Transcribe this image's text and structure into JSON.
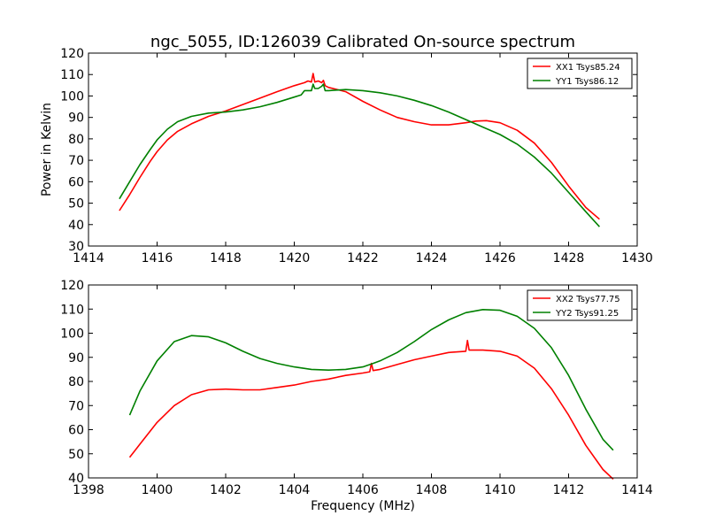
{
  "figure": {
    "title": "ngc_5055, ID:126039 Calibrated On-source spectrum"
  },
  "chart_data": [
    {
      "type": "line",
      "title": "ngc_5055, ID:126039 Calibrated On-source spectrum",
      "xlabel": "",
      "ylabel": "Power in Kelvin",
      "xlim": [
        1414,
        1430
      ],
      "ylim": [
        30,
        120
      ],
      "xticks": [
        1414,
        1416,
        1418,
        1420,
        1422,
        1424,
        1426,
        1428,
        1430
      ],
      "yticks": [
        30,
        40,
        50,
        60,
        70,
        80,
        90,
        100,
        110,
        120
      ],
      "legend_position": "top-right",
      "grid": false,
      "series": [
        {
          "name": "XX1 Tsys85.24",
          "color": "#ff0000",
          "x": [
            1414.9,
            1415.2,
            1415.5,
            1415.8,
            1416.0,
            1416.3,
            1416.6,
            1417.0,
            1417.5,
            1418.0,
            1418.5,
            1419.0,
            1419.5,
            1420.0,
            1420.3,
            1420.4,
            1420.5,
            1420.55,
            1420.6,
            1420.7,
            1420.8,
            1420.85,
            1420.9,
            1421.0,
            1421.5,
            1422.0,
            1422.5,
            1423.0,
            1423.5,
            1424.0,
            1424.5,
            1425.0,
            1425.3,
            1425.6,
            1426.0,
            1426.5,
            1427.0,
            1427.5,
            1428.0,
            1428.5,
            1428.9
          ],
          "y": [
            46.5,
            54,
            62,
            69.5,
            74,
            79.5,
            83.5,
            87,
            90.5,
            93,
            96,
            99,
            102,
            104.8,
            106.2,
            107,
            106.5,
            110.5,
            106.5,
            107,
            106.2,
            107.3,
            104.8,
            104,
            102,
            97.5,
            93.5,
            90,
            88,
            86.5,
            86.5,
            87.5,
            88.3,
            88.5,
            87.5,
            84,
            78,
            69,
            58,
            48,
            42.5
          ]
        },
        {
          "name": "YY1 Tsys86.12",
          "color": "#008000",
          "x": [
            1414.9,
            1415.2,
            1415.5,
            1415.8,
            1416.0,
            1416.3,
            1416.6,
            1417.0,
            1417.5,
            1418.0,
            1418.5,
            1419.0,
            1419.5,
            1420.0,
            1420.2,
            1420.3,
            1420.4,
            1420.5,
            1420.55,
            1420.6,
            1420.7,
            1420.8,
            1420.85,
            1420.9,
            1421.0,
            1421.5,
            1422.0,
            1422.5,
            1423.0,
            1423.5,
            1424.0,
            1424.5,
            1425.0,
            1425.5,
            1426.0,
            1426.5,
            1427.0,
            1427.5,
            1428.0,
            1428.5,
            1428.9
          ],
          "y": [
            52,
            60,
            68,
            75,
            79.5,
            84.5,
            88,
            90.5,
            92,
            92.5,
            93.5,
            95,
            97,
            99.5,
            100.5,
            102.5,
            102.5,
            102.5,
            105.5,
            103.5,
            103.5,
            104.5,
            105.5,
            102.5,
            102.5,
            103,
            102.5,
            101.5,
            100,
            98,
            95.5,
            92.5,
            89,
            85.5,
            82,
            77.5,
            71.5,
            64,
            55,
            46,
            39
          ]
        }
      ]
    },
    {
      "type": "line",
      "title": "",
      "xlabel": "Frequency (MHz)",
      "ylabel": "",
      "xlim": [
        1398,
        1414
      ],
      "ylim": [
        40,
        120
      ],
      "xticks": [
        1398,
        1400,
        1402,
        1404,
        1406,
        1408,
        1410,
        1412,
        1414
      ],
      "yticks": [
        40,
        50,
        60,
        70,
        80,
        90,
        100,
        110,
        120
      ],
      "legend_position": "top-right",
      "grid": false,
      "series": [
        {
          "name": "XX2 Tsys77.75",
          "color": "#ff0000",
          "x": [
            1399.2,
            1399.5,
            1400.0,
            1400.5,
            1401.0,
            1401.5,
            1402.0,
            1402.5,
            1403.0,
            1403.5,
            1404.0,
            1404.5,
            1405.0,
            1405.5,
            1406.0,
            1406.2,
            1406.25,
            1406.3,
            1406.5,
            1407.0,
            1407.5,
            1408.0,
            1408.5,
            1409.0,
            1409.05,
            1409.1,
            1409.5,
            1410.0,
            1410.5,
            1411.0,
            1411.5,
            1412.0,
            1412.5,
            1413.0,
            1413.3
          ],
          "y": [
            48.5,
            54,
            63,
            70,
            74.5,
            76.5,
            76.8,
            76.5,
            76.5,
            77.5,
            78.5,
            80,
            81,
            82.5,
            83.5,
            84,
            87.5,
            84.5,
            85,
            87,
            89,
            90.5,
            92,
            92.5,
            97,
            93,
            93,
            92.5,
            90.5,
            85.5,
            77,
            66,
            53.5,
            43.5,
            39.5
          ]
        },
        {
          "name": "YY2 Tsys91.25",
          "color": "#008000",
          "x": [
            1399.2,
            1399.5,
            1400.0,
            1400.5,
            1401.0,
            1401.5,
            1402.0,
            1402.5,
            1403.0,
            1403.5,
            1404.0,
            1404.5,
            1405.0,
            1405.5,
            1406.0,
            1406.3,
            1406.5,
            1407.0,
            1407.5,
            1408.0,
            1408.5,
            1409.0,
            1409.5,
            1410.0,
            1410.5,
            1411.0,
            1411.5,
            1412.0,
            1412.5,
            1413.0,
            1413.3
          ],
          "y": [
            66,
            76,
            88.5,
            96.5,
            99,
            98.5,
            96,
            92.5,
            89.5,
            87.5,
            86,
            85,
            84.7,
            85,
            86,
            87.5,
            88.5,
            92,
            96.5,
            101.5,
            105.5,
            108.5,
            109.8,
            109.5,
            107,
            102,
            94,
            82.5,
            68.5,
            56,
            51.5
          ]
        }
      ]
    }
  ]
}
